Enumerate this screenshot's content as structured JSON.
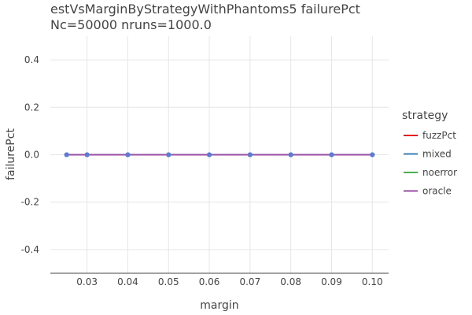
{
  "chart_data": {
    "type": "line",
    "title": "estVsMarginByStrategyWithPhantoms5 failurePct",
    "subtitle": "Nc=50000 nruns=1000.0",
    "xlabel": "margin",
    "ylabel": "failurePct",
    "xlim": [
      0.021,
      0.104
    ],
    "ylim": [
      -0.5,
      0.5
    ],
    "xticks": [
      0.03,
      0.04,
      0.05,
      0.06,
      0.07,
      0.08,
      0.09,
      0.1
    ],
    "xtick_labels": [
      "0.03",
      "0.04",
      "0.05",
      "0.06",
      "0.07",
      "0.08",
      "0.09",
      "0.10"
    ],
    "yticks": [
      0.4,
      0.2,
      0.0,
      -0.2,
      -0.4
    ],
    "ytick_labels": [
      "0.4",
      "0.2",
      "0.0",
      "-0.2",
      "-0.4"
    ],
    "grid": true,
    "legend_title": "strategy",
    "legend_position": "right",
    "x": [
      0.025,
      0.03,
      0.04,
      0.05,
      0.06,
      0.07,
      0.08,
      0.09,
      0.1
    ],
    "series": [
      {
        "name": "fuzzPct",
        "color": "#e41a1c",
        "values": [
          0,
          0,
          0,
          0,
          0,
          0,
          0,
          0,
          0
        ]
      },
      {
        "name": "mixed",
        "color": "#377eb8",
        "values": [
          0,
          0,
          0,
          0,
          0,
          0,
          0,
          0,
          0
        ]
      },
      {
        "name": "noerror",
        "color": "#4daf4a",
        "values": [
          0,
          0,
          0,
          0,
          0,
          0,
          0,
          0,
          0
        ]
      },
      {
        "name": "oracle",
        "color": "#984ea3",
        "values": [
          0,
          0,
          0,
          0,
          0,
          0,
          0,
          0,
          0
        ]
      }
    ],
    "marker_color": "#5b7bd5"
  }
}
